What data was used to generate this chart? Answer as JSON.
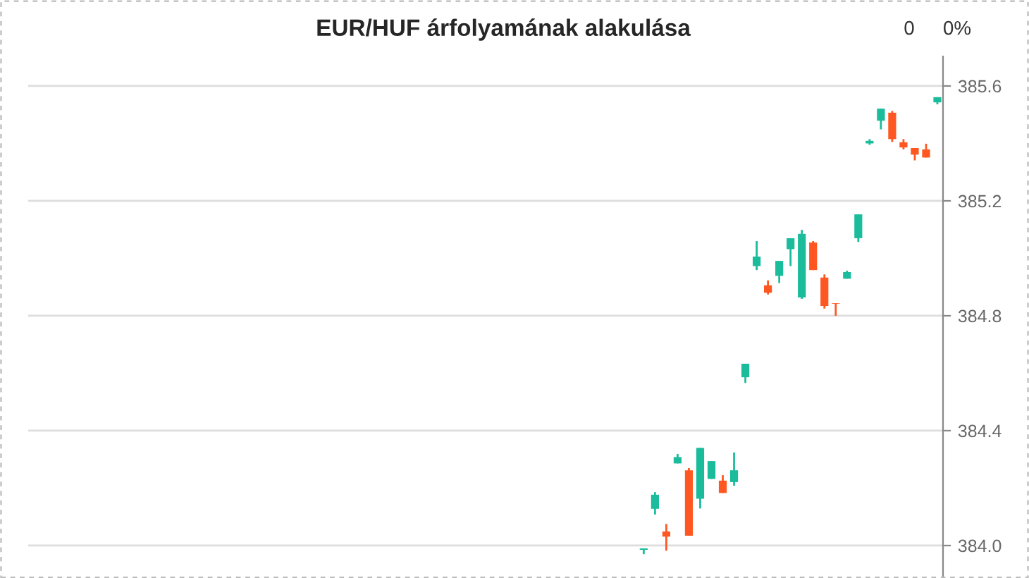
{
  "chart_data": {
    "type": "candlestick",
    "title": "EUR/HUF árfolyamának alakulása",
    "annotations": [
      "0",
      "0%"
    ],
    "categories": [
      null,
      null,
      null,
      null,
      null,
      null,
      null,
      null,
      null,
      null,
      null,
      null,
      null,
      null,
      null,
      null,
      null,
      null,
      null,
      null,
      null,
      null,
      null,
      null,
      null,
      null,
      null,
      null,
      null,
      null,
      null,
      null,
      null,
      null,
      null,
      null,
      null,
      null,
      null,
      null,
      null,
      null,
      null,
      null,
      null,
      null,
      null,
      null,
      null,
      null,
      null,
      null,
      null,
      null,
      null,
      null,
      null,
      null,
      null,
      null,
      null,
      null,
      null,
      null,
      null,
      null,
      null,
      null,
      null,
      null,
      null,
      null,
      null,
      null,
      null,
      null,
      null,
      null,
      null,
      null,
      null
    ],
    "ohlc": [
      null,
      null,
      null,
      null,
      null,
      null,
      null,
      null,
      null,
      null,
      null,
      null,
      null,
      null,
      null,
      null,
      null,
      null,
      null,
      null,
      null,
      null,
      null,
      null,
      null,
      null,
      null,
      null,
      null,
      null,
      null,
      null,
      null,
      null,
      null,
      null,
      null,
      null,
      null,
      null,
      null,
      null,
      null,
      null,
      null,
      null,
      null,
      null,
      null,
      null,
      null,
      null,
      null,
      null,
      [
        383.985,
        383.99,
        383.97,
        383.99
      ],
      [
        384.128,
        384.186,
        384.108,
        384.177
      ],
      [
        384.049,
        384.075,
        383.982,
        384.031
      ],
      [
        384.286,
        384.319,
        384.286,
        384.308
      ],
      [
        384.262,
        384.27,
        384.034,
        384.034
      ],
      [
        384.163,
        384.34,
        384.129,
        384.34
      ],
      [
        384.232,
        384.294,
        384.232,
        384.294
      ],
      [
        384.226,
        384.245,
        384.183,
        384.183
      ],
      [
        384.221,
        384.324,
        384.208,
        384.262
      ],
      [
        384.586,
        384.633,
        384.566,
        384.633
      ],
      [
        384.973,
        385.06,
        384.959,
        385.006
      ],
      [
        384.906,
        384.923,
        384.874,
        384.88
      ],
      [
        384.939,
        384.991,
        384.914,
        384.991
      ],
      [
        385.032,
        385.07,
        384.973,
        385.07
      ],
      [
        384.864,
        385.099,
        384.859,
        385.085
      ],
      [
        385.055,
        385.06,
        384.959,
        384.959
      ],
      [
        384.933,
        384.944,
        384.825,
        384.834
      ],
      [
        384.844,
        384.844,
        384.8,
        384.842
      ],
      [
        384.929,
        384.957,
        384.929,
        384.952
      ],
      [
        385.07,
        385.153,
        385.057,
        385.153
      ],
      [
        385.4,
        385.415,
        385.395,
        385.409
      ],
      [
        385.479,
        385.521,
        385.449,
        385.521
      ],
      [
        385.507,
        385.513,
        385.405,
        385.415
      ],
      [
        385.404,
        385.415,
        385.379,
        385.386
      ],
      [
        385.384,
        385.384,
        385.341,
        385.361
      ],
      [
        385.379,
        385.399,
        385.351,
        385.351
      ],
      [
        385.543,
        385.561,
        385.536,
        385.561
      ]
    ],
    "colors": [
      null,
      null,
      null,
      null,
      null,
      null,
      null,
      null,
      null,
      null,
      null,
      null,
      null,
      null,
      null,
      null,
      null,
      null,
      null,
      null,
      null,
      null,
      null,
      null,
      null,
      null,
      null,
      null,
      null,
      null,
      null,
      null,
      null,
      null,
      null,
      null,
      null,
      null,
      null,
      null,
      null,
      null,
      null,
      null,
      null,
      null,
      null,
      null,
      null,
      null,
      null,
      null,
      null,
      null,
      "#1abc9c",
      "#1abc9c",
      "#ff5722",
      "#1abc9c",
      "#ff5722",
      "#1abc9c",
      "#1abc9c",
      "#ff5722",
      "#1abc9c",
      "#1abc9c",
      "#1abc9c",
      "#ff5722",
      "#1abc9c",
      "#1abc9c",
      "#1abc9c",
      "#ff5722",
      "#ff5722",
      "#ff5722",
      "#1abc9c",
      "#1abc9c",
      "#1abc9c",
      "#1abc9c",
      "#ff5722",
      "#ff5722",
      "#ff5722",
      "#ff5722",
      "#1abc9c"
    ],
    "ylim": [
      383.887,
      385.703
    ],
    "yticks": [
      {
        "value": 384.0,
        "label": "384.0"
      },
      {
        "value": 384.4,
        "label": "384.4"
      },
      {
        "value": 384.8,
        "label": "384.8"
      },
      {
        "value": 385.2,
        "label": "385.2"
      },
      {
        "value": 385.6,
        "label": "385.6"
      }
    ],
    "tick_labels": "y",
    "grid": "y"
  }
}
